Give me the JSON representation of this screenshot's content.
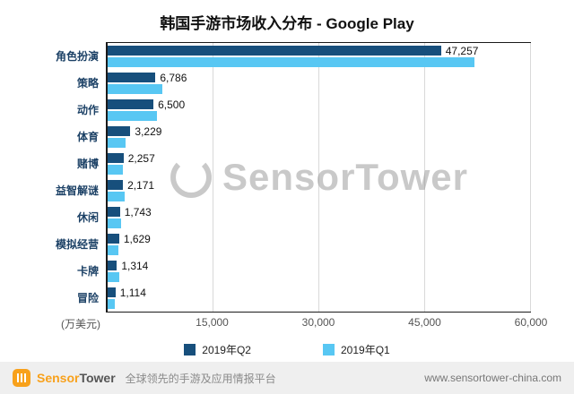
{
  "chart": {
    "title": "韩国手游市场收入分布 - Google Play",
    "x_unit": "(万美元)",
    "x_ticks": [
      "15,000",
      "30,000",
      "45,000",
      "60,000"
    ]
  },
  "chart_data": {
    "type": "bar",
    "orientation": "horizontal",
    "title": "韩国手游市场收入分布 - Google Play",
    "xlabel": "(万美元)",
    "xlim": [
      0,
      60000
    ],
    "x_ticks": [
      15000,
      30000,
      45000,
      60000
    ],
    "grid": true,
    "legend_position": "bottom",
    "categories": [
      "角色扮演",
      "策略",
      "动作",
      "体育",
      "赌博",
      "益智解谜",
      "休闲",
      "模拟经营",
      "卡牌",
      "冒险"
    ],
    "series": [
      {
        "name": "2019年Q2",
        "color": "#174f7c",
        "values": [
          47257,
          6786,
          6500,
          3229,
          2257,
          2171,
          1743,
          1629,
          1314,
          1114
        ],
        "labels": [
          "47,257",
          "6,786",
          "6,500",
          "3,229",
          "2,257",
          "2,171",
          "1,743",
          "1,629",
          "1,314",
          "1,114"
        ]
      },
      {
        "name": "2019年Q1",
        "color": "#58c7f3",
        "values": [
          52000,
          7800,
          7000,
          2600,
          2100,
          2400,
          1900,
          1500,
          1650,
          1000
        ],
        "values_estimated": true
      }
    ]
  },
  "watermark": {
    "text": "SensorTower"
  },
  "footer": {
    "brand_sensor": "Sensor",
    "brand_tower": "Tower",
    "tagline": "全球领先的手游及应用情报平台",
    "url": "www.sensortower-china.com"
  }
}
